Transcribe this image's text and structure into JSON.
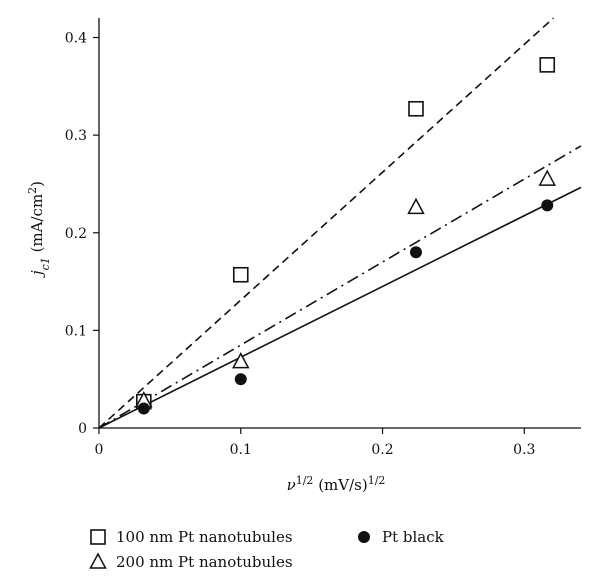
{
  "chart_data": {
    "type": "scatter",
    "title": "",
    "xlabel": "ν^1/2 (mV/s)^1/2",
    "ylabel": "j_c1 (mA/cm^2)",
    "xlim": [
      0,
      0.34
    ],
    "ylim": [
      0,
      0.42
    ],
    "grid": false,
    "legend_position": "bottom",
    "x_ticks": [
      {
        "value": 0,
        "label": "0"
      },
      {
        "value": 0.1,
        "label": "0.1"
      },
      {
        "value": 0.2,
        "label": "0.2"
      },
      {
        "value": 0.3,
        "label": "0.3"
      }
    ],
    "y_ticks": [
      {
        "value": 0,
        "label": "0"
      },
      {
        "value": 0.1,
        "label": "0.1"
      },
      {
        "value": 0.2,
        "label": "0.2"
      },
      {
        "value": 0.3,
        "label": "0.3"
      },
      {
        "value": 0.4,
        "label": "0.4"
      }
    ],
    "series": [
      {
        "name": "100 nm Pt nanotubules",
        "marker": "square",
        "fit_line": "dashed",
        "fit_slope": 1.31,
        "points": [
          [
            0.0316,
            0.027
          ],
          [
            0.1,
            0.157
          ],
          [
            0.2236,
            0.327
          ],
          [
            0.3162,
            0.372
          ]
        ]
      },
      {
        "name": "200 nm Pt nanotubules",
        "marker": "triangle",
        "fit_line": "dash-dot",
        "fit_slope": 0.85,
        "points": [
          [
            0.0316,
            0.028
          ],
          [
            0.1,
            0.068
          ],
          [
            0.2236,
            0.226
          ],
          [
            0.3162,
            0.255
          ]
        ]
      },
      {
        "name": "Pt black",
        "marker": "circle",
        "fit_line": "solid",
        "fit_slope": 0.725,
        "points": [
          [
            0.0316,
            0.02
          ],
          [
            0.1,
            0.05
          ],
          [
            0.2236,
            0.18
          ],
          [
            0.3162,
            0.228
          ]
        ]
      }
    ],
    "colors": {
      "marks": "#111111",
      "background": "#ffffff"
    }
  }
}
